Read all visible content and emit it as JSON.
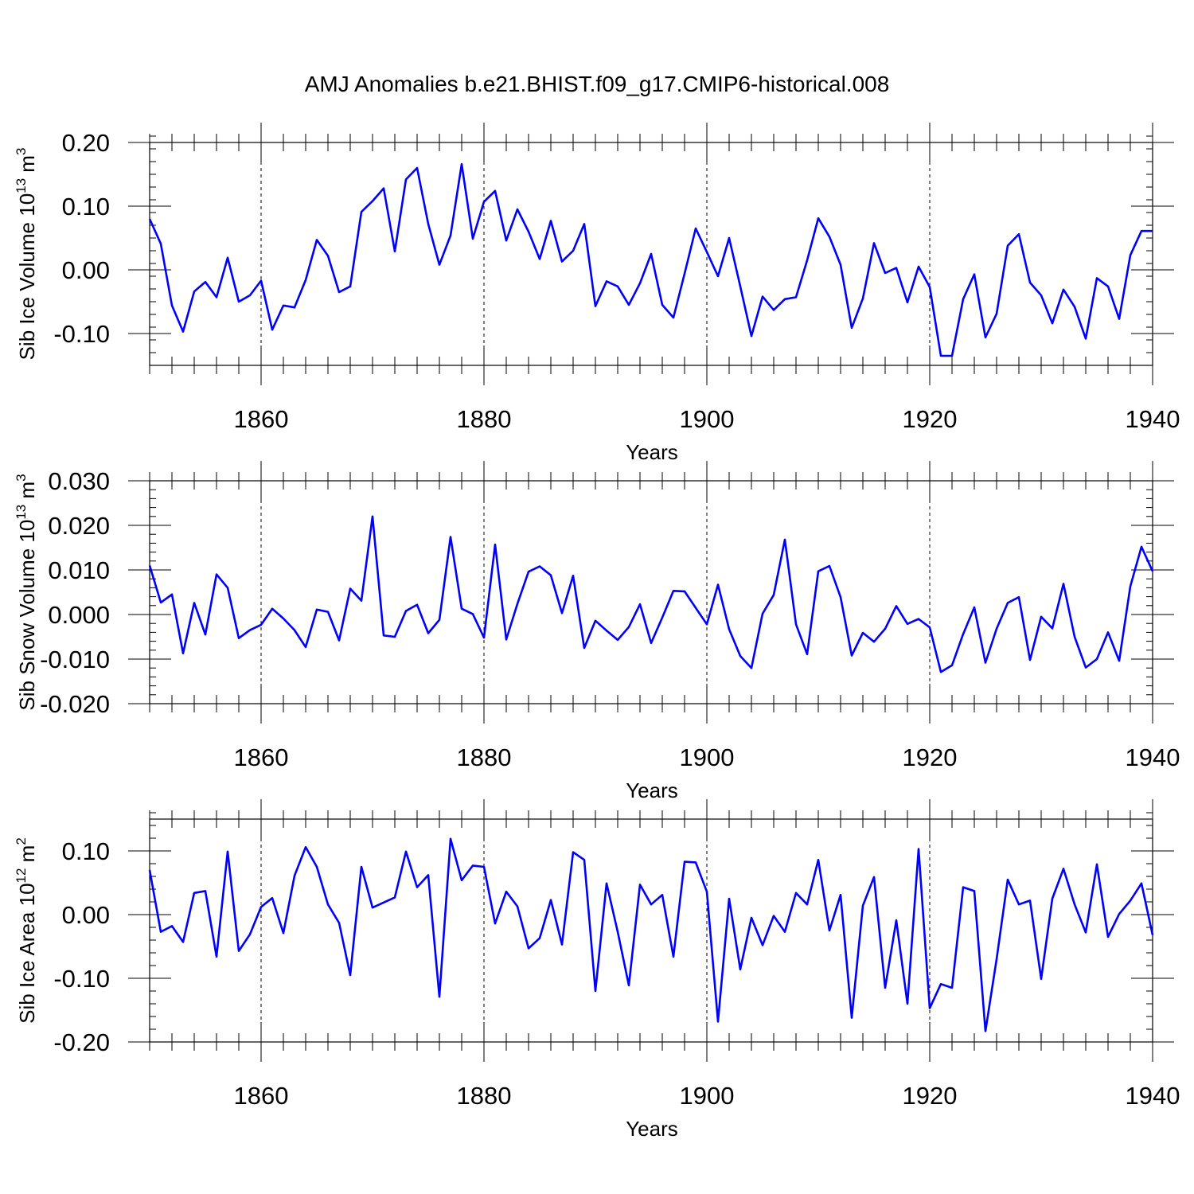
{
  "title": "AMJ Anomalies b.e21.BHIST.f09_g17.CMIP6-historical.008",
  "chart_data": [
    {
      "type": "line",
      "ylabel_main": "Sib Ice Volume 10",
      "ylabel_sup": "13",
      "ylabel_unit": " m",
      "ylabel_unit_sup": "3",
      "xlabel": "Years",
      "xlim": [
        1850,
        1940
      ],
      "ylim": [
        -0.15,
        0.2
      ],
      "yticks": [
        -0.1,
        0.0,
        0.1,
        0.2
      ],
      "ytick_labels": [
        "-0.10",
        "0.00",
        "0.10",
        "0.20"
      ],
      "xticks": [
        1860,
        1880,
        1900,
        1920,
        1940
      ],
      "xtick_labels": [
        "1860",
        "1880",
        "1900",
        "1920",
        "1940"
      ],
      "ymin_step": 0.02,
      "line_color": "#0000ff",
      "x_start": 1850,
      "values": [
        0.08,
        0.041,
        -0.056,
        -0.097,
        -0.034,
        -0.019,
        -0.043,
        0.019,
        -0.05,
        -0.04,
        -0.017,
        -0.094,
        -0.056,
        -0.059,
        -0.016,
        0.047,
        0.022,
        -0.035,
        -0.026,
        0.091,
        0.108,
        0.128,
        0.029,
        0.142,
        0.16,
        0.072,
        0.008,
        0.054,
        0.166,
        0.049,
        0.107,
        0.124,
        0.046,
        0.095,
        0.06,
        0.017,
        0.077,
        0.013,
        0.03,
        0.072,
        -0.057,
        -0.018,
        -0.026,
        -0.055,
        -0.021,
        0.025,
        -0.055,
        -0.075,
        -0.006,
        0.065,
        0.028,
        -0.01,
        0.05,
        -0.026,
        -0.104,
        -0.042,
        -0.063,
        -0.046,
        -0.043,
        0.015,
        0.081,
        0.052,
        0.008,
        -0.091,
        -0.045,
        0.042,
        -0.005,
        0.003,
        -0.051,
        0.005,
        -0.027,
        -0.135,
        -0.135,
        -0.046,
        -0.007,
        -0.106,
        -0.069,
        0.038,
        0.056,
        -0.02,
        -0.04,
        -0.084,
        -0.031,
        -0.058,
        -0.108,
        -0.013,
        -0.026,
        -0.077,
        0.023,
        0.061,
        0.061
      ]
    },
    {
      "type": "line",
      "ylabel_main": "Sib Snow Volume 10",
      "ylabel_sup": "13",
      "ylabel_unit": " m",
      "ylabel_unit_sup": "3",
      "xlabel": "Years",
      "xlim": [
        1850,
        1940
      ],
      "ylim": [
        -0.02,
        0.03
      ],
      "yticks": [
        -0.02,
        -0.01,
        0.0,
        0.01,
        0.02,
        0.03
      ],
      "ytick_labels": [
        "-0.020",
        "-0.010",
        "0.000",
        "0.010",
        "0.020",
        "0.030"
      ],
      "xticks": [
        1860,
        1880,
        1900,
        1920,
        1940
      ],
      "xtick_labels": [
        "1860",
        "1880",
        "1900",
        "1920",
        "1940"
      ],
      "ymin_step": 0.002,
      "line_color": "#0000ff",
      "x_start": 1850,
      "values": [
        0.011,
        0.0027,
        0.0045,
        -0.0087,
        0.0026,
        -0.0045,
        0.009,
        0.006,
        -0.0053,
        -0.0035,
        -0.0023,
        0.0013,
        -0.0009,
        -0.0035,
        -0.0073,
        0.0011,
        0.0006,
        -0.0058,
        0.0058,
        0.0031,
        0.022,
        -0.0047,
        -0.005,
        0.0008,
        0.0022,
        -0.0042,
        -0.0012,
        0.0174,
        0.0013,
        0.0001,
        -0.0052,
        0.0157,
        -0.0056,
        0.0024,
        0.0096,
        0.0108,
        0.0088,
        0.0003,
        0.0087,
        -0.0075,
        -0.0014,
        -0.0036,
        -0.0057,
        -0.0028,
        0.0023,
        -0.0064,
        -0.0007,
        0.0053,
        0.0052,
        0.0015,
        -0.0022,
        0.0067,
        -0.0033,
        -0.0093,
        -0.012,
        0.0002,
        0.0044,
        0.0168,
        -0.0022,
        -0.0089,
        0.0097,
        0.0109,
        0.0039,
        -0.0092,
        -0.0041,
        -0.0061,
        -0.0032,
        0.0019,
        -0.0021,
        -0.001,
        -0.0029,
        -0.0129,
        -0.0114,
        -0.0044,
        0.0016,
        -0.0108,
        -0.0032,
        0.0026,
        0.0039,
        -0.0102,
        -0.0005,
        -0.0031,
        0.0069,
        -0.005,
        -0.0119,
        -0.01,
        -0.004,
        -0.0104,
        0.0063,
        0.0152,
        0.0097
      ]
    },
    {
      "type": "line",
      "ylabel_main": "Sib Ice Area 10",
      "ylabel_sup": "12",
      "ylabel_unit": " m",
      "ylabel_unit_sup": "2",
      "xlabel": "Years",
      "xlim": [
        1850,
        1940
      ],
      "ylim": [
        -0.2,
        0.15
      ],
      "yticks": [
        -0.2,
        -0.1,
        0.0,
        0.1
      ],
      "ytick_labels": [
        "-0.20",
        "-0.10",
        "0.00",
        "0.10"
      ],
      "xticks": [
        1860,
        1880,
        1900,
        1920,
        1940
      ],
      "xtick_labels": [
        "1860",
        "1880",
        "1900",
        "1920",
        "1940"
      ],
      "ymin_step": 0.02,
      "line_color": "#0000ff",
      "x_start": 1850,
      "values": [
        0.07,
        -0.027,
        -0.018,
        -0.043,
        0.034,
        0.037,
        -0.066,
        0.099,
        -0.057,
        -0.031,
        0.012,
        0.026,
        -0.029,
        0.061,
        0.106,
        0.075,
        0.016,
        -0.013,
        -0.095,
        0.075,
        0.011,
        0.019,
        0.027,
        0.099,
        0.043,
        0.062,
        -0.129,
        0.119,
        0.054,
        0.077,
        0.075,
        -0.014,
        0.036,
        0.013,
        -0.053,
        -0.037,
        0.023,
        -0.047,
        0.098,
        0.086,
        -0.12,
        0.049,
        -0.027,
        -0.111,
        0.047,
        0.016,
        0.031,
        -0.066,
        0.083,
        0.082,
        0.036,
        -0.168,
        0.025,
        -0.086,
        -0.005,
        -0.048,
        -0.002,
        -0.027,
        0.034,
        0.016,
        0.086,
        -0.025,
        0.031,
        -0.162,
        0.014,
        0.059,
        -0.115,
        -0.009,
        -0.14,
        0.103,
        -0.147,
        -0.109,
        -0.115,
        0.043,
        0.037,
        -0.183,
        -0.07,
        0.055,
        0.016,
        0.022,
        -0.101,
        0.025,
        0.072,
        0.016,
        -0.028,
        0.079,
        -0.035,
        0.001,
        0.022,
        0.049,
        -0.032
      ]
    }
  ]
}
